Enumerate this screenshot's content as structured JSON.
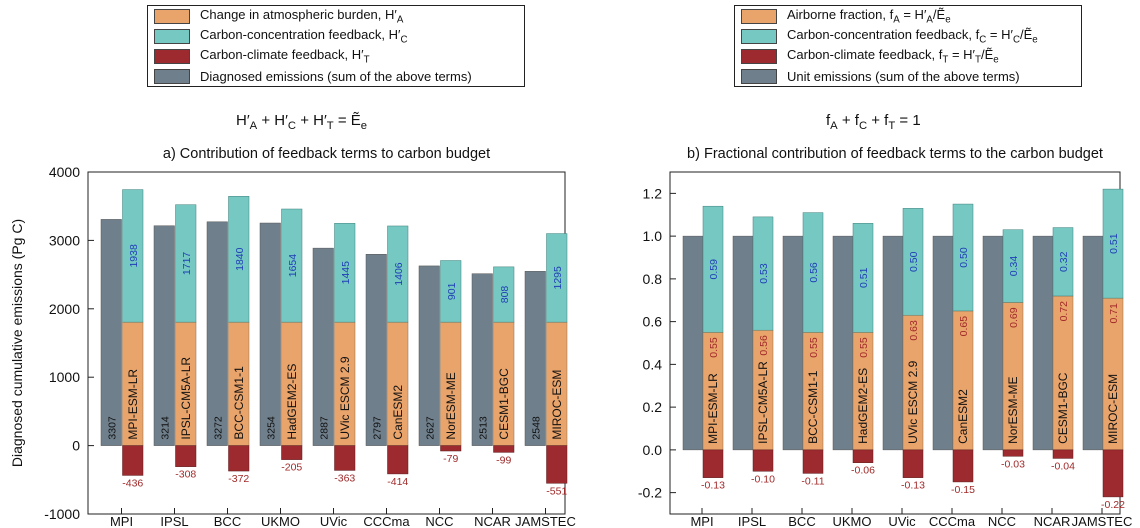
{
  "legends": [
    {
      "items": [
        {
          "text": "Change in atmospheric burden, H′_A",
          "color": "#E9A46B"
        },
        {
          "text": "Carbon-concentration feedback, H′_C",
          "color": "#76C9C3"
        },
        {
          "text": "Carbon-climate feedback, H′_T",
          "color": "#9C2A2E"
        },
        {
          "text": "Diagnosed emissions (sum of the above terms)",
          "color": "#6F7F8C"
        }
      ]
    },
    {
      "items": [
        {
          "text": "Airborne fraction, f_A = H′_A/Ẽ_e",
          "color": "#E9A46B"
        },
        {
          "text": "Carbon-concentration feedback, f_C = H′_C/Ẽ_e",
          "color": "#76C9C3"
        },
        {
          "text": "Carbon-climate feedback, f_T = H′_T/Ẽ_e",
          "color": "#9C2A2E"
        },
        {
          "text": "Unit emissions (sum of the above terms)",
          "color": "#6F7F8C"
        }
      ]
    }
  ],
  "equations": {
    "left": "H′_A + H′_C + H′_T = Ẽ_e",
    "right": "f_A + f_C + f_T = 1"
  },
  "colors": {
    "atmospheric": "#E9A46B",
    "concentration": "#76C9C3",
    "climate": "#9C2A2E",
    "emissions": "#6F7F8C",
    "blue_label": "#1F3FB5",
    "red_label": "#A12A2A"
  },
  "chart_data": [
    {
      "type": "bar",
      "title": "a) Contribution of feedback terms to carbon budget",
      "xlabel": "",
      "ylabel": "Diagnosed cumulative emissions (Pg C)",
      "ylim": [
        -1000,
        4000
      ],
      "yticks": [
        "-1000",
        "0",
        "1000",
        "2000",
        "3000",
        "4000"
      ],
      "ytick_values": [
        -1000,
        0,
        1000,
        2000,
        3000,
        4000
      ],
      "categories": [
        "MPI",
        "IPSL",
        "BCC",
        "UKMO",
        "UVic",
        "CCCma",
        "NCC",
        "NCAR",
        "JAMSTEC"
      ],
      "models": [
        "MPI-ESM-LR",
        "IPSL-CM5A-LR",
        "BCC-CSM1-1",
        "HadGEM2-ES",
        "UVic ESCM 2.9",
        "CanESM2",
        "NorESM-ME",
        "CESM1-BGC",
        "MIROC-ESM"
      ],
      "series": [
        {
          "name": "Diagnosed emissions (sum of the above terms)",
          "values": [
            3307,
            3214,
            3272,
            3254,
            2887,
            2797,
            2627,
            2513,
            2548
          ],
          "labels": [
            "3307",
            "3214",
            "3272",
            "3254",
            "2887",
            "2797",
            "2627",
            "2513",
            "2548"
          ]
        },
        {
          "name": "Change in atmospheric burden, H′_A",
          "values": [
            1805,
            1805,
            1805,
            1805,
            1805,
            1805,
            1805,
            1805,
            1805
          ]
        },
        {
          "name": "Carbon-concentration feedback, H′_C",
          "values": [
            1938,
            1717,
            1840,
            1654,
            1445,
            1406,
            901,
            808,
            1295
          ],
          "labels": [
            "1938",
            "1717",
            "1840",
            "1654",
            "1445",
            "1406",
            "901",
            "808",
            "1295"
          ]
        },
        {
          "name": "Carbon-climate feedback, H′_T",
          "values": [
            -436,
            -308,
            -372,
            -205,
            -363,
            -414,
            -79,
            -99,
            -551
          ],
          "labels": [
            "-436",
            "-308",
            "-372",
            "-205",
            "-363",
            "-414",
            "-79",
            "-99",
            "-551"
          ]
        }
      ]
    },
    {
      "type": "bar",
      "title": "b) Fractional contribution of feedback terms to the carbon budget",
      "xlabel": "",
      "ylabel": "",
      "ylim": [
        -0.3,
        1.3
      ],
      "yticks": [
        "-0.2",
        "0.0",
        "0.2",
        "0.4",
        "0.6",
        "0.8",
        "1.0",
        "1.2"
      ],
      "ytick_values": [
        -0.2,
        0.0,
        0.2,
        0.4,
        0.6,
        0.8,
        1.0,
        1.2
      ],
      "categories": [
        "MPI",
        "IPSL",
        "BCC",
        "UKMO",
        "UVic",
        "CCCma",
        "NCC",
        "NCAR",
        "JAMSTEC"
      ],
      "models": [
        "MPI-ESM-LR",
        "IPSL-CM5A-LR",
        "BCC-CSM1-1",
        "HadGEM2-ES",
        "UVic ESCM 2.9",
        "CanESM2",
        "NorESM-ME",
        "CESM1-BGC",
        "MIROC-ESM"
      ],
      "series": [
        {
          "name": "Unit emissions (sum of the above terms)",
          "values": [
            1,
            1,
            1,
            1,
            1,
            1,
            1,
            1,
            1
          ]
        },
        {
          "name": "Airborne fraction, f_A",
          "values": [
            0.55,
            0.56,
            0.55,
            0.55,
            0.63,
            0.65,
            0.69,
            0.72,
            0.71
          ],
          "labels": [
            "0.55",
            "0.56",
            "0.55",
            "0.55",
            "0.63",
            "0.65",
            "0.69",
            "0.72",
            "0.71"
          ]
        },
        {
          "name": "Carbon-concentration feedback, f_C",
          "values": [
            0.59,
            0.53,
            0.56,
            0.51,
            0.5,
            0.5,
            0.34,
            0.32,
            0.51
          ],
          "labels": [
            "0.59",
            "0.53",
            "0.56",
            "0.51",
            "0.50",
            "0.50",
            "0.34",
            "0.32",
            "0.51"
          ]
        },
        {
          "name": "Carbon-climate feedback, f_T",
          "values": [
            -0.13,
            -0.1,
            -0.11,
            -0.06,
            -0.13,
            -0.15,
            -0.03,
            -0.04,
            -0.22
          ],
          "labels": [
            "-0.13",
            "-0.10",
            "-0.11",
            "-0.06",
            "-0.13",
            "-0.15",
            "-0.03",
            "-0.04",
            "-0.22"
          ]
        }
      ]
    }
  ]
}
